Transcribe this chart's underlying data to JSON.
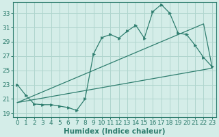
{
  "xlabel": "Humidex (Indice chaleur)",
  "x_tick_labels": [
    "0",
    "1",
    "2",
    "3",
    "4",
    "5",
    "6",
    "7",
    "8",
    "9",
    "10",
    "11",
    "12",
    "13",
    "14",
    "15",
    "16",
    "17",
    "18",
    "19",
    "20",
    "21",
    "22",
    "23"
  ],
  "ylim": [
    18.5,
    34.5
  ],
  "xlim": [
    -0.5,
    23.5
  ],
  "y_ticks": [
    19,
    21,
    23,
    25,
    27,
    29,
    31,
    33
  ],
  "main_data": [
    23.0,
    21.5,
    20.3,
    20.2,
    20.2,
    20.0,
    19.8,
    19.4,
    21.0,
    27.3,
    29.6,
    30.0,
    29.5,
    30.5,
    31.3,
    29.5,
    33.2,
    34.2,
    33.0,
    30.2,
    30.0,
    28.5,
    26.8,
    25.5
  ],
  "upper_line_x": [
    0,
    22,
    23
  ],
  "upper_line_y": [
    20.5,
    31.5,
    25.5
  ],
  "lower_line_x": [
    0,
    23
  ],
  "lower_line_y": [
    20.5,
    25.3
  ],
  "line_color": "#2e7d6e",
  "bg_color": "#d4ede8",
  "grid_color": "#afd5ce",
  "tick_fontsize": 6.5,
  "label_fontsize": 7.5
}
